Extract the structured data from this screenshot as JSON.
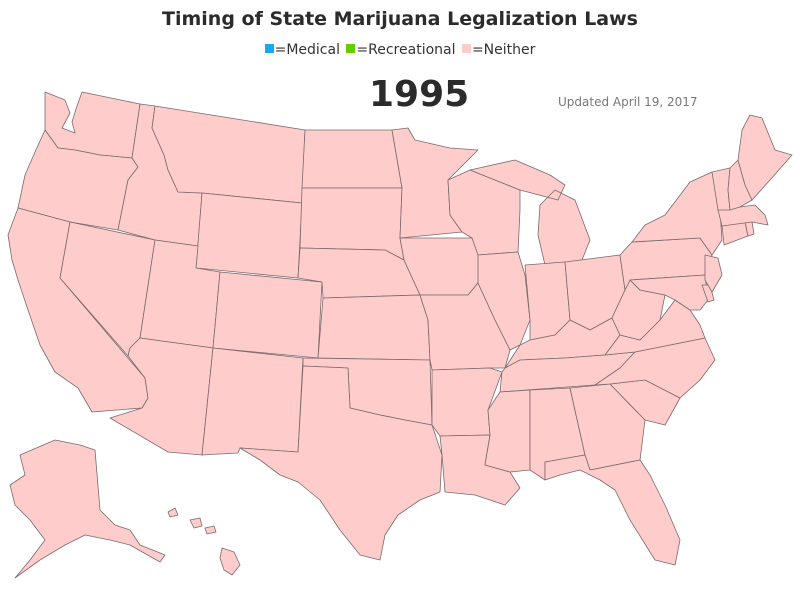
{
  "title": "Timing of State Marijuana Legalization Laws",
  "legend": [
    {
      "label": "=Medical",
      "color": "#1aa8ee"
    },
    {
      "label": "=Recreational",
      "color": "#66cc00"
    },
    {
      "label": "=Neither",
      "color": "#ffcccc"
    }
  ],
  "year": "1995",
  "updated": "Updated April 19, 2017",
  "states": {
    "WA": "Neither",
    "OR": "Neither",
    "CA": "Neither",
    "NV": "Neither",
    "ID": "Neither",
    "MT": "Neither",
    "WY": "Neither",
    "UT": "Neither",
    "AZ": "Neither",
    "CO": "Neither",
    "NM": "Neither",
    "ND": "Neither",
    "SD": "Neither",
    "NE": "Neither",
    "KS": "Neither",
    "OK": "Neither",
    "TX": "Neither",
    "MN": "Neither",
    "IA": "Neither",
    "MO": "Neither",
    "AR": "Neither",
    "LA": "Neither",
    "WI": "Neither",
    "IL": "Neither",
    "MI": "Neither",
    "IN": "Neither",
    "OH": "Neither",
    "KY": "Neither",
    "TN": "Neither",
    "MS": "Neither",
    "AL": "Neither",
    "GA": "Neither",
    "FL": "Neither",
    "SC": "Neither",
    "NC": "Neither",
    "VA": "Neither",
    "WV": "Neither",
    "PA": "Neither",
    "NY": "Neither",
    "MD": "Neither",
    "DE": "Neither",
    "NJ": "Neither",
    "CT": "Neither",
    "RI": "Neither",
    "MA": "Neither",
    "VT": "Neither",
    "NH": "Neither",
    "ME": "Neither",
    "AK": "Neither",
    "HI": "Neither"
  }
}
